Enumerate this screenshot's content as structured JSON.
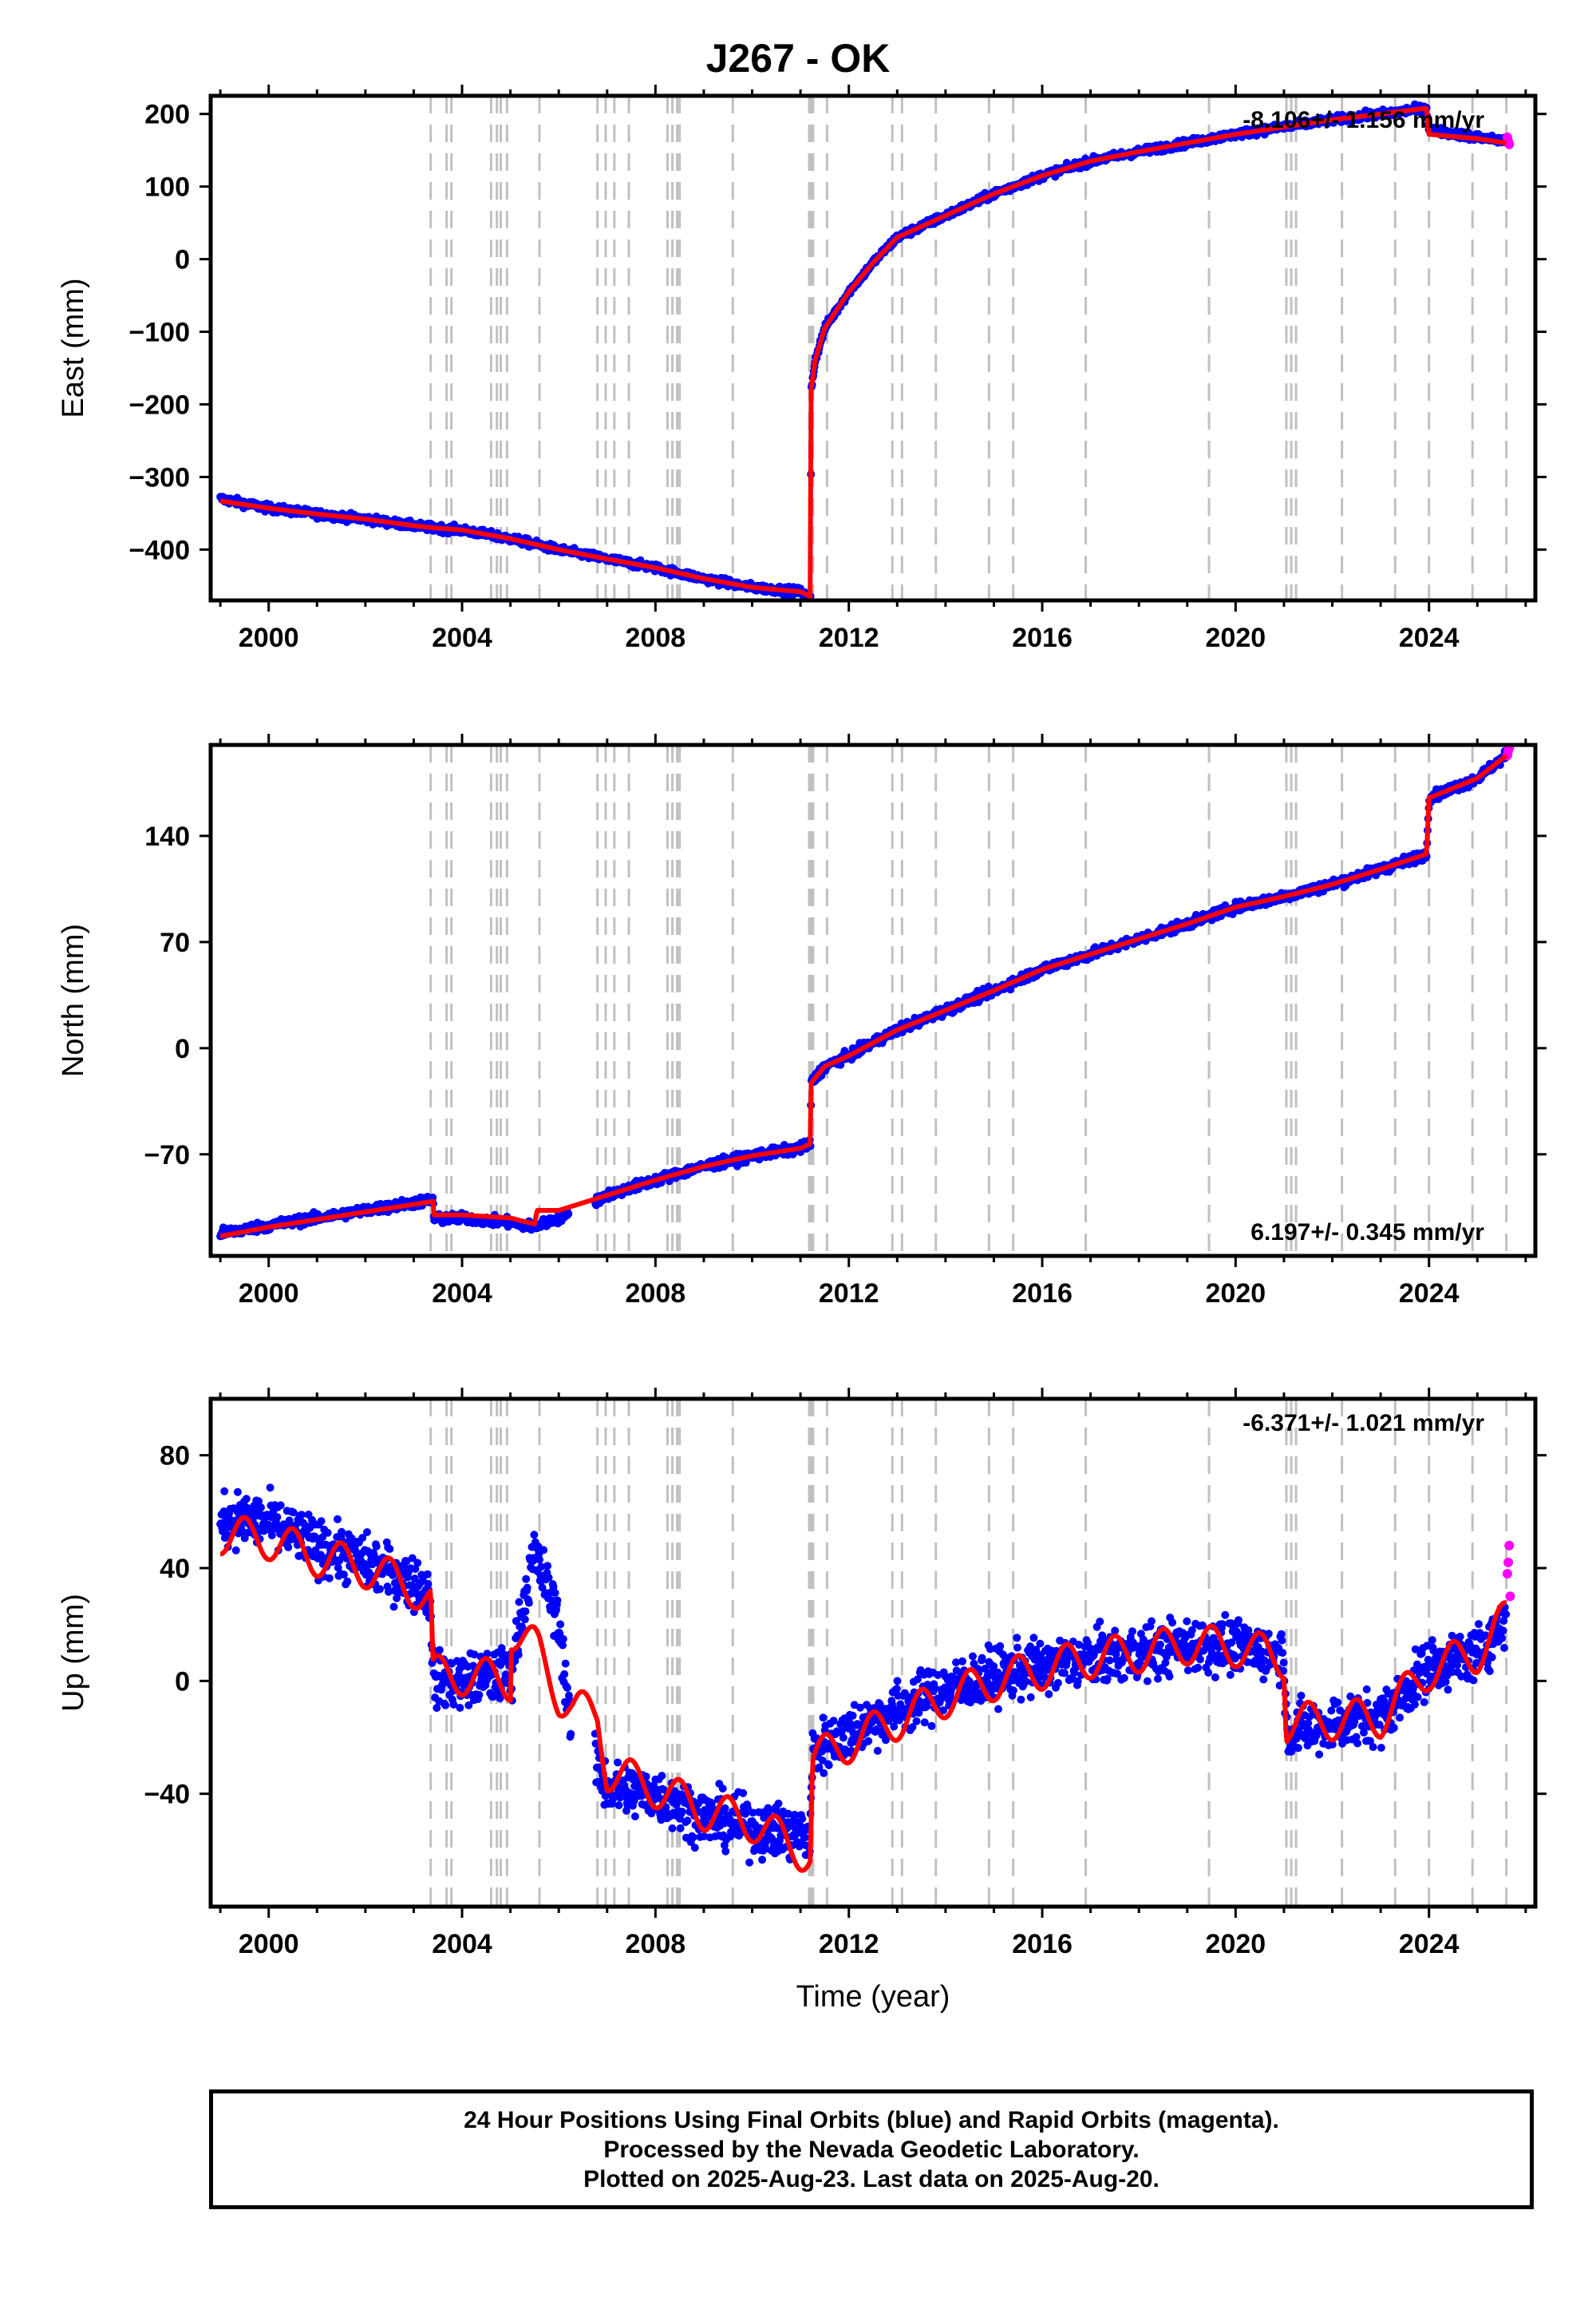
{
  "title": "J267 - OK",
  "xlabel": "Time (year)",
  "footer": [
    "24 Hour Positions Using Final Orbits (blue) and Rapid Orbits (magenta).",
    "Processed by the Nevada Geodetic Laboratory.",
    "Plotted on 2025-Aug-23. Last data on 2025-Aug-20."
  ],
  "colors": {
    "final_orbits": "#0000ff",
    "rapid_orbits": "#ff00ff",
    "model": "#ff0000",
    "event_lines": "#c0c0c0"
  },
  "chart_data": [
    {
      "type": "scatter",
      "ylabel": "East (mm)",
      "rate_text": "-8.106+/- 1.156 mm/yr",
      "rate_position": "top-right",
      "xlim": [
        1998.8,
        2026.2
      ],
      "ylim": [
        -470,
        225
      ],
      "xticks": [
        2000,
        2004,
        2008,
        2012,
        2016,
        2020,
        2024
      ],
      "yticks": [
        -400,
        -300,
        -200,
        -100,
        0,
        100,
        200
      ],
      "ytick_labels": [
        "−400",
        "−300",
        "−200",
        "−100",
        "0",
        "100",
        "200"
      ],
      "grid": false,
      "series": [
        {
          "role": "final orbits (blue)",
          "x": [
            1999.0,
            2000.0,
            2001.0,
            2002.0,
            2003.0,
            2003.4,
            2004.0,
            2005.0,
            2006.0,
            2007.0,
            2008.0,
            2009.0,
            2010.0,
            2011.0,
            2011.21,
            2011.22,
            2011.3,
            2011.5,
            2012.0,
            2012.5,
            2013.0,
            2014.0,
            2015.0,
            2016.0,
            2017.0,
            2018.0,
            2019.0,
            2020.0,
            2021.0,
            2022.0,
            2023.0,
            2023.95,
            2024.0,
            2025.0,
            2025.6
          ],
          "y": [
            -330,
            -343,
            -351,
            -358,
            -367,
            -370,
            -373,
            -385,
            -400,
            -413,
            -425,
            -440,
            -452,
            -458,
            -468,
            -180,
            -140,
            -95,
            -45,
            -5,
            30,
            60,
            90,
            115,
            135,
            148,
            160,
            172,
            182,
            192,
            200,
            208,
            178,
            168,
            163
          ],
          "noise": 5
        },
        {
          "role": "rapid orbits (magenta)",
          "x": [
            2025.62,
            2025.64,
            2025.66
          ],
          "y": [
            168,
            162,
            158
          ]
        },
        {
          "role": "model (red)",
          "x": [
            1999.0,
            2000.0,
            2001.0,
            2002.0,
            2003.0,
            2003.4,
            2004.0,
            2005.0,
            2006.0,
            2007.0,
            2008.0,
            2009.0,
            2010.0,
            2011.0,
            2011.21,
            2011.22,
            2011.3,
            2011.5,
            2012.0,
            2012.5,
            2013.0,
            2014.0,
            2015.0,
            2016.0,
            2017.0,
            2018.0,
            2019.0,
            2020.0,
            2021.0,
            2022.0,
            2023.0,
            2023.95,
            2024.0,
            2025.0,
            2025.6
          ],
          "y": [
            -333,
            -343,
            -351,
            -358,
            -367,
            -370,
            -373,
            -385,
            -400,
            -413,
            -425,
            -440,
            -452,
            -458,
            -465,
            -180,
            -140,
            -95,
            -45,
            -5,
            30,
            60,
            90,
            115,
            135,
            148,
            160,
            172,
            182,
            192,
            200,
            208,
            172,
            166,
            160
          ]
        }
      ]
    },
    {
      "type": "scatter",
      "ylabel": "North (mm)",
      "rate_text": "6.197+/- 0.345 mm/yr",
      "rate_position": "bottom-right",
      "xlim": [
        1998.8,
        2026.2
      ],
      "ylim": [
        -137,
        200
      ],
      "xticks": [
        2000,
        2004,
        2008,
        2012,
        2016,
        2020,
        2024
      ],
      "yticks": [
        -70,
        0,
        70,
        140
      ],
      "ytick_labels": [
        "−70",
        "0",
        "70",
        "140"
      ],
      "grid": false,
      "series": [
        {
          "role": "final orbits (blue)",
          "x": [
            1999.0,
            2000.0,
            2001.0,
            2002.0,
            2003.0,
            2003.4,
            2003.42,
            2004.0,
            2005.0,
            2005.5,
            2006.0,
            2007.0,
            2008.0,
            2009.0,
            2010.0,
            2011.0,
            2011.21,
            2011.22,
            2011.5,
            2012.0,
            2013.0,
            2014.0,
            2015.0,
            2016.0,
            2017.0,
            2018.0,
            2019.0,
            2020.0,
            2021.0,
            2022.0,
            2023.0,
            2023.95,
            2024.0,
            2025.0,
            2025.6
          ],
          "y": [
            -122,
            -117,
            -112,
            -107,
            -102,
            -100,
            -113,
            -112,
            -115,
            -118,
            -112,
            -97,
            -87,
            -78,
            -71,
            -66,
            -63,
            -23,
            -12,
            -5,
            12,
            25,
            38,
            52,
            62,
            72,
            82,
            93,
            100,
            108,
            118,
            128,
            165,
            178,
            193
          ],
          "noise": 3
        },
        {
          "role": "rapid orbits (magenta)",
          "x": [
            2025.62,
            2025.64,
            2025.66
          ],
          "y": [
            193,
            196,
            198
          ]
        },
        {
          "role": "model (red)",
          "x": [
            1999.0,
            2000.0,
            2001.0,
            2002.0,
            2003.0,
            2003.4,
            2003.42,
            2004.0,
            2005.0,
            2005.5,
            2005.55,
            2006.0,
            2007.0,
            2008.0,
            2009.0,
            2010.0,
            2011.0,
            2011.21,
            2011.22,
            2011.5,
            2012.0,
            2013.0,
            2014.0,
            2015.0,
            2016.0,
            2017.0,
            2018.0,
            2019.0,
            2020.0,
            2021.0,
            2022.0,
            2023.0,
            2023.95,
            2024.0,
            2025.0,
            2025.6
          ],
          "y": [
            -124,
            -118,
            -113,
            -108,
            -103,
            -101,
            -110,
            -110,
            -112,
            -116,
            -107,
            -107,
            -97,
            -87,
            -78,
            -71,
            -66,
            -63,
            -23,
            -12,
            -5,
            12,
            25,
            38,
            52,
            62,
            72,
            82,
            93,
            100,
            108,
            118,
            128,
            165,
            178,
            193
          ]
        }
      ]
    },
    {
      "type": "scatter",
      "ylabel": "Up (mm)",
      "rate_text": "-6.371+/- 1.021 mm/yr",
      "rate_position": "top-right",
      "xlim": [
        1998.8,
        2026.2
      ],
      "ylim": [
        -80,
        100
      ],
      "xticks": [
        2000,
        2004,
        2008,
        2012,
        2016,
        2020,
        2024
      ],
      "yticks": [
        -40,
        0,
        40,
        80
      ],
      "ytick_labels": [
        "−40",
        "0",
        "40",
        "80"
      ],
      "grid": false,
      "series": [
        {
          "role": "final orbits (blue)",
          "x": [
            1999.0,
            2000.0,
            2001.0,
            2002.0,
            2003.0,
            2003.35,
            2003.4,
            2004.0,
            2005.0,
            2005.3,
            2005.5,
            2006.0,
            2006.3,
            2006.8,
            2007.0,
            2008.0,
            2009.0,
            2010.0,
            2011.2,
            2011.25,
            2012.0,
            2013.0,
            2014.0,
            2015.0,
            2016.0,
            2017.0,
            2018.0,
            2019.0,
            2020.0,
            2021.0,
            2021.05,
            2022.0,
            2023.0,
            2024.0,
            2025.0,
            2025.6
          ],
          "y": [
            58,
            56,
            48,
            42,
            35,
            30,
            0,
            0,
            2,
            30,
            45,
            22,
            -25,
            -30,
            -38,
            -40,
            -48,
            -52,
            -55,
            -25,
            -18,
            -10,
            -3,
            2,
            5,
            8,
            10,
            13,
            12,
            10,
            -18,
            -15,
            -13,
            5,
            10,
            22
          ],
          "noise": 9
        },
        {
          "role": "rapid orbits (magenta)",
          "x": [
            2025.62,
            2025.64,
            2025.66,
            2025.68
          ],
          "y": [
            38,
            42,
            48,
            30
          ]
        },
        {
          "role": "model (red)",
          "x": [
            1999.0,
            2000.0,
            2001.0,
            2002.0,
            2003.0,
            2003.35,
            2003.4,
            2004.0,
            2005.0,
            2005.02,
            2005.5,
            2005.6,
            2006.0,
            2006.3,
            2006.8,
            2007.0,
            2008.0,
            2009.0,
            2010.0,
            2011.2,
            2011.25,
            2012.0,
            2013.0,
            2014.0,
            2015.0,
            2016.0,
            2017.0,
            2018.0,
            2019.0,
            2020.0,
            2021.0,
            2021.05,
            2022.0,
            2023.0,
            2024.0,
            2025.0,
            2025.6
          ],
          "y": [
            52,
            50,
            44,
            40,
            33,
            28,
            2,
            2,
            0,
            18,
            12,
            10,
            -5,
            -10,
            -12,
            -32,
            -38,
            -46,
            -50,
            -62,
            -28,
            -22,
            -14,
            -6,
            0,
            4,
            8,
            10,
            13,
            12,
            8,
            -15,
            -14,
            -13,
            4,
            10,
            22
          ]
        }
      ]
    }
  ],
  "event_lines_years": [
    2003.35,
    2003.68,
    2003.78,
    2004.6,
    2004.72,
    2004.8,
    2004.93,
    2005.6,
    2006.8,
    2006.97,
    2007.15,
    2007.45,
    2008.25,
    2008.35,
    2008.45,
    2008.5,
    2009.6,
    2011.18,
    2011.22,
    2011.26,
    2011.55,
    2012.9,
    2013.1,
    2013.8,
    2014.9,
    2015.4,
    2016.9,
    2019.45,
    2021.05,
    2021.15,
    2021.25,
    2022.2,
    2023.3,
    2024.0,
    2024.9,
    2025.6
  ]
}
